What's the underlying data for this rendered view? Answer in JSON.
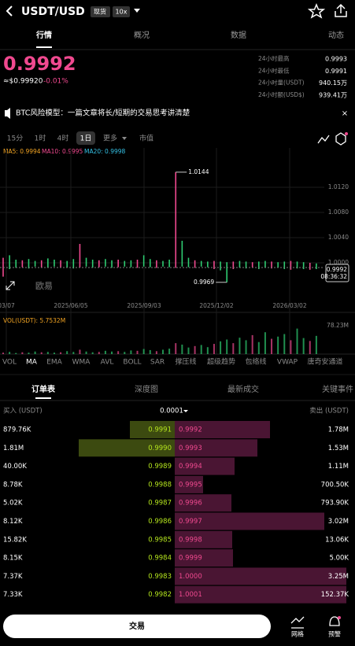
{
  "header": {
    "symbol": "USDT/USD",
    "badge": "现货",
    "leverage": "10x"
  },
  "tabs": [
    "行情",
    "概况",
    "数据",
    "动态"
  ],
  "price": {
    "last": "0.9992",
    "usd": "≈$0.99920",
    "change": "-0.01%"
  },
  "stats": [
    {
      "label": "24小时最高",
      "value": "0.9993"
    },
    {
      "label": "24小时最低",
      "value": "0.9991"
    },
    {
      "label": "24小时量(USDT)",
      "value": "940.15万"
    },
    {
      "label": "24小时额(USD$)",
      "value": "939.41万"
    }
  ],
  "banner": "BTC风险模型：一篇文章将长/短期的交易思考讲清楚",
  "timeframes": [
    "15分",
    "1时",
    "4时",
    "1日",
    "更多",
    "市值"
  ],
  "ma": [
    "MA5: 0.9994",
    "MA10: 0.9995",
    "MA20: 0.9998"
  ],
  "chart_data": {
    "type": "candlestick",
    "ylim": [
      0.994,
      1.01825
    ],
    "yticks": [
      {
        "value": 1.012,
        "label": "1.0120"
      },
      {
        "value": 1.008,
        "label": "1.0080"
      },
      {
        "value": 1.004,
        "label": "1.0040"
      },
      {
        "value": 1.0,
        "label": "1.0000"
      }
    ],
    "xticks": [
      "03/07",
      "2025/06/05",
      "2025/09/03",
      "2025/12/02",
      "2026/03/02"
    ],
    "high": [
      1.0008,
      1.0012,
      1.0005,
      1.0004,
      1.0006,
      1.0003,
      1.0004,
      1.0007,
      1.0005,
      1.0004,
      1.0003,
      1.0006,
      1.003,
      1.0008,
      1.0005,
      1.0004,
      1.0006,
      1.0004,
      1.0005,
      1.0003,
      1.0004,
      1.0005,
      1.0012,
      1.0006,
      1.0004,
      1.0003,
      1.0005,
      1.0144,
      1.0035,
      1.0008,
      1.0004,
      1.0003,
      1.0002,
      1.0003,
      1.0002,
      1.0001,
      1.0002,
      1.0003,
      1.0002,
      1.0001,
      1.0002,
      1.0003,
      1.0002,
      1.0001,
      1.0002,
      1.0003,
      1.0002,
      1.0001,
      1.0,
      0.9999
    ],
    "low": [
      0.9978,
      0.999,
      0.9992,
      0.9993,
      0.9991,
      0.9994,
      0.9992,
      0.9993,
      0.9994,
      0.9992,
      0.9993,
      0.9991,
      0.9993,
      0.9994,
      0.9992,
      0.9993,
      0.9994,
      0.9992,
      0.9993,
      0.9994,
      0.9993,
      0.9992,
      0.9994,
      0.9993,
      0.9992,
      0.9994,
      0.9993,
      0.9992,
      0.9994,
      0.9993,
      0.9992,
      0.9994,
      0.9993,
      0.999,
      0.9988,
      0.9969,
      0.999,
      0.9992,
      0.9991,
      0.9993,
      0.999,
      0.9992,
      0.9991,
      0.9993,
      0.999,
      0.9989,
      0.9991,
      0.999,
      0.9989,
      0.999
    ],
    "high_label": "1.0144",
    "low_label": "0.9969",
    "last_label": "0.9992",
    "countdown": "08:36:32",
    "watermark": "欧易",
    "volume_title": "VOL(USDT): 5.7532M",
    "vol_ylim": [
      0,
      108
    ],
    "vol_ticks": [
      {
        "value": 78.23,
        "label": "78.23M"
      }
    ],
    "volume": [
      4,
      6,
      3,
      5,
      4,
      7,
      5,
      6,
      4,
      5,
      8,
      6,
      12,
      7,
      5,
      6,
      9,
      7,
      8,
      6,
      10,
      9,
      14,
      11,
      8,
      12,
      15,
      30,
      26,
      18,
      22,
      25,
      19,
      28,
      35,
      40,
      30,
      45,
      38,
      52,
      33,
      60,
      42,
      48,
      55,
      38,
      70,
      44,
      36,
      50
    ]
  },
  "indicators": [
    "VOL",
    "MA",
    "EMA",
    "WMA",
    "AVL",
    "BOLL",
    "SAR",
    "撑压线",
    "超级趋势",
    "包络线",
    "VWAP",
    "唐奇安通道"
  ],
  "book_tabs": [
    "订单表",
    "深度图",
    "最新成交",
    "关键事件"
  ],
  "book_header": {
    "buy": "买入 (USDT)",
    "step": "0.0001",
    "sell": "卖出 (USDT)"
  },
  "book": [
    [
      "879.76K",
      "0.9991",
      "0.9992",
      "1.78M"
    ],
    [
      "1.81M",
      "0.9990",
      "0.9993",
      "1.53M"
    ],
    [
      "40.00K",
      "0.9989",
      "0.9994",
      "1.11M"
    ],
    [
      "8.78K",
      "0.9988",
      "0.9995",
      "700.50K"
    ],
    [
      "5.02K",
      "0.9987",
      "0.9996",
      "793.90K"
    ],
    [
      "8.12K",
      "0.9986",
      "0.9997",
      "3.02M"
    ],
    [
      "15.82K",
      "0.9985",
      "0.9998",
      "13.06K"
    ],
    [
      "8.15K",
      "0.9984",
      "0.9999",
      "5.00K"
    ],
    [
      "7.37K",
      "0.9983",
      "1.0000",
      "3.25M"
    ],
    [
      "7.33K",
      "0.9982",
      "1.0001",
      "152.37K"
    ]
  ],
  "footer": {
    "trade": "交易",
    "grid": "网格",
    "alert": "预警"
  }
}
